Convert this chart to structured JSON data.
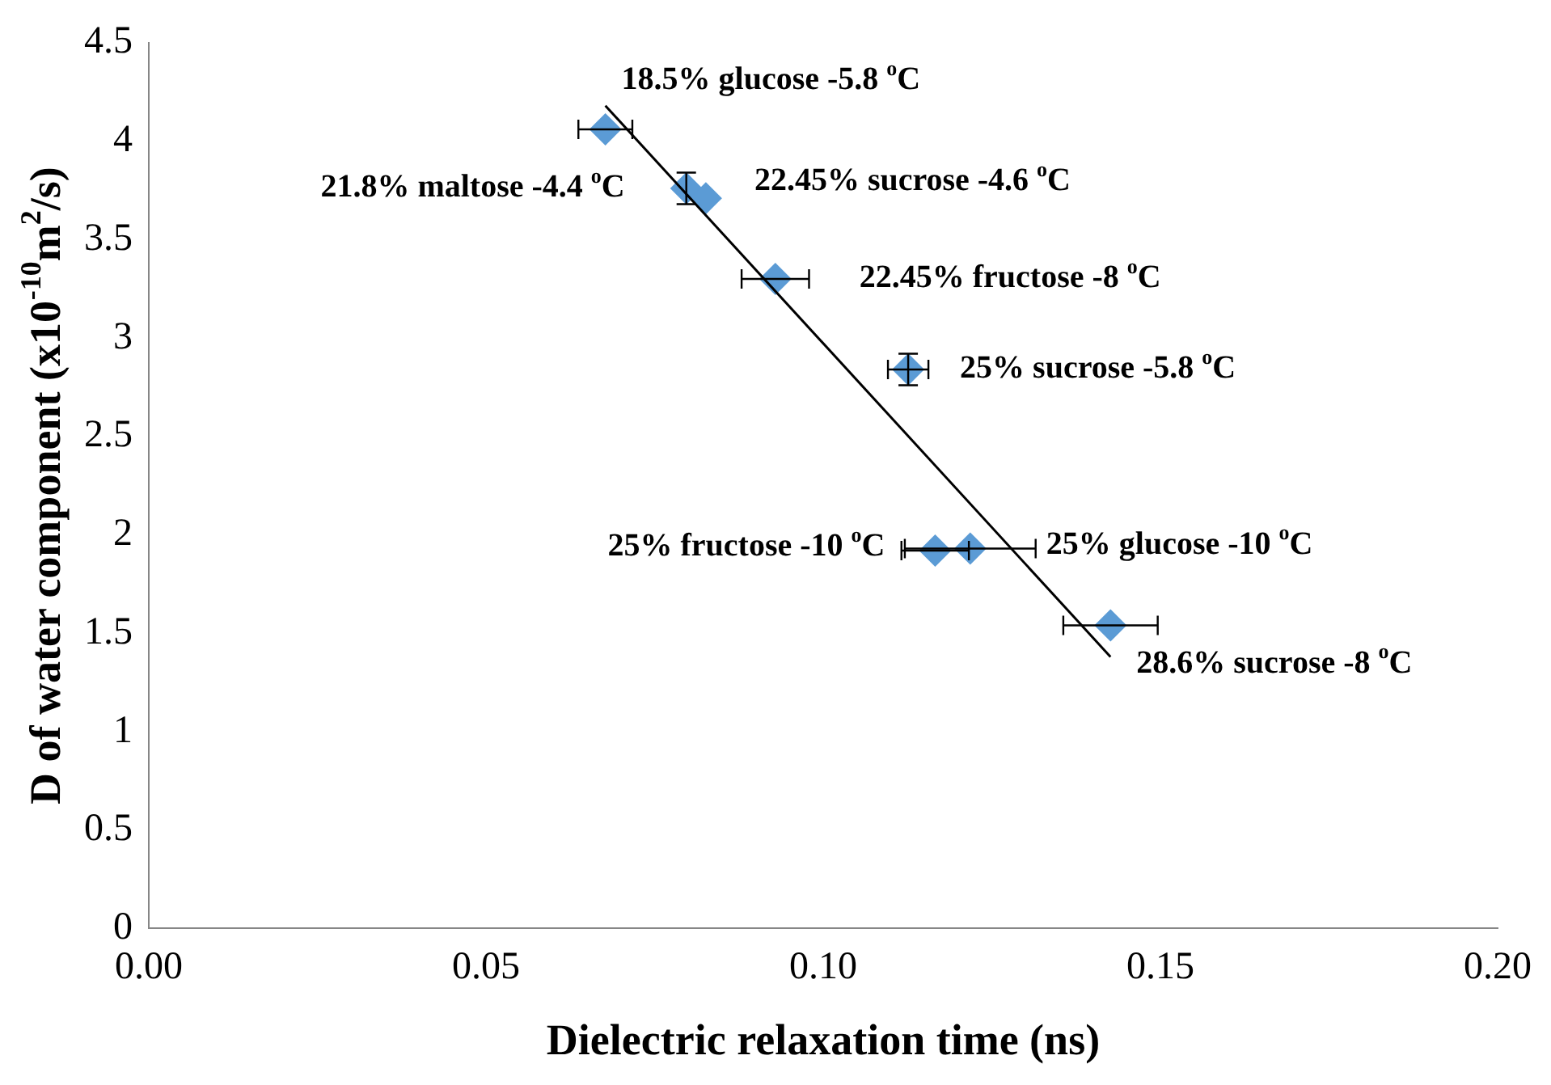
{
  "chart_data": {
    "type": "scatter",
    "xlabel": "Dielectric relaxation time (ns)",
    "ylabel": "D of water component (x10$^{-10}$m$^{2}$/s)",
    "xlim": [
      0,
      0.2
    ],
    "xticks": [
      {
        "value": 0,
        "label": "0.00"
      },
      {
        "value": 0.05,
        "label": "0.05"
      },
      {
        "value": 0.1,
        "label": "0.10"
      },
      {
        "value": 0.15,
        "label": "0.15"
      },
      {
        "value": 0.2,
        "label": "0.20"
      }
    ],
    "ylim": [
      0,
      4.5
    ],
    "yticks": [
      0,
      0.5,
      1,
      1.5,
      2,
      2.5,
      3,
      3.5,
      4,
      4.5
    ],
    "grid": false,
    "legend": false,
    "series": [
      {
        "color": "#5b9bd5",
        "marker": "diamond",
        "x": [
          0.0677,
          0.0797,
          0.0826,
          0.0929,
          0.1126,
          0.1166,
          0.1218,
          0.1426
        ],
        "values": [
          4.06,
          3.76,
          3.71,
          3.3,
          2.84,
          1.92,
          1.93,
          1.54
        ],
        "errors": [
          null,
          0.08,
          null,
          null,
          0.08,
          null,
          null,
          null
        ],
        "xerrors": [
          0.004,
          null,
          null,
          0.005,
          0.003,
          0.005,
          0.0097,
          0.007
        ]
      },
      {
        "type": "line",
        "color": "#000000",
        "marker": "none",
        "line_style": "solid",
        "x": [
          0.0677,
          0.1426
        ],
        "values": [
          4.18,
          1.38
        ]
      }
    ],
    "annotations": [
      {
        "text": "18.5% glucose -5.8 $^{o}$C",
        "x": 0.0677,
        "y": 4.06
      },
      {
        "text": "21.8% maltose -4.4 $^{o}$C",
        "x": 0.0797,
        "y": 3.76
      },
      {
        "text": "22.45% sucrose -4.6 $^{o}$C",
        "x": 0.0826,
        "y": 3.71
      },
      {
        "text": "22.45% fructose -8 $^{o}$C",
        "x": 0.0929,
        "y": 3.3
      },
      {
        "text": "25% sucrose -5.8 $^{o}$C",
        "x": 0.1126,
        "y": 2.84
      },
      {
        "text": "25% fructose -10 $^{o}$C",
        "x": 0.1166,
        "y": 1.92
      },
      {
        "text": "25% glucose -10 $^{o}$C",
        "x": 0.1218,
        "y": 1.93
      },
      {
        "text": "28.6% sucrose -8 $^{o}$C",
        "x": 0.1426,
        "y": 1.54
      }
    ]
  }
}
